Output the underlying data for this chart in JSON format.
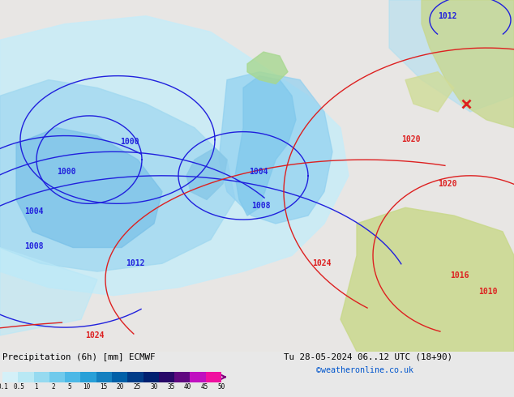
{
  "title_left": "Precipitation (6h) [mm] ECMWF",
  "title_right": "Tu 28-05-2024 06..12 UTC (18+90)",
  "credit": "©weatheronline.co.uk",
  "colorbar_labels": [
    "0.1",
    "0.5",
    "1",
    "2",
    "5",
    "10",
    "15",
    "20",
    "25",
    "30",
    "35",
    "40",
    "45",
    "50"
  ],
  "colorbar_colors": [
    "#d4f0f8",
    "#b8e8f4",
    "#96daf0",
    "#70caec",
    "#4cb8e6",
    "#28a0d8",
    "#1480c0",
    "#0060a8",
    "#003c88",
    "#002070",
    "#280868",
    "#600880",
    "#c010c0",
    "#f010a0"
  ],
  "bg_color": "#e8e8e8",
  "sea_color": "#e0ecf4",
  "land_color": "#d8d0c8",
  "precip_light": "#c8eef8",
  "precip_mid": "#90d0f0",
  "precip_dark": "#50a8e0",
  "precip_heavy": "#2080c8",
  "fig_width": 6.34,
  "fig_height": 4.9,
  "dpi": 100
}
